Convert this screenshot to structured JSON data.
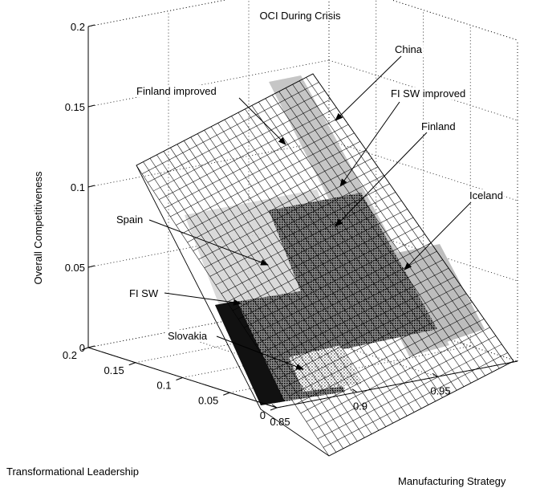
{
  "chart_data": {
    "type": "surface",
    "title": "OCI During Crisis",
    "xlabel": "Manufacturing Strategy",
    "ylabel": "Transformational Leadership",
    "zlabel": "Overall Competitiveness",
    "xlim": [
      0.85,
      1.0
    ],
    "ylim": [
      0,
      0.2
    ],
    "zlim": [
      0,
      0.2
    ],
    "x_ticks": [
      "0.85",
      "0.9",
      "0.95"
    ],
    "y_ticks": [
      "0",
      "0.05",
      "0.1",
      "0.15",
      "0.2"
    ],
    "z_ticks": [
      "0",
      "0.05",
      "0.1",
      "0.15",
      "0.2"
    ],
    "grid": true,
    "annotations": [
      {
        "label": "China"
      },
      {
        "label": "Finland improved"
      },
      {
        "label": "FI SW improved"
      },
      {
        "label": "Finland"
      },
      {
        "label": "Iceland"
      },
      {
        "label": "Spain"
      },
      {
        "label": "FI SW"
      },
      {
        "label": "Slovakia"
      }
    ]
  }
}
